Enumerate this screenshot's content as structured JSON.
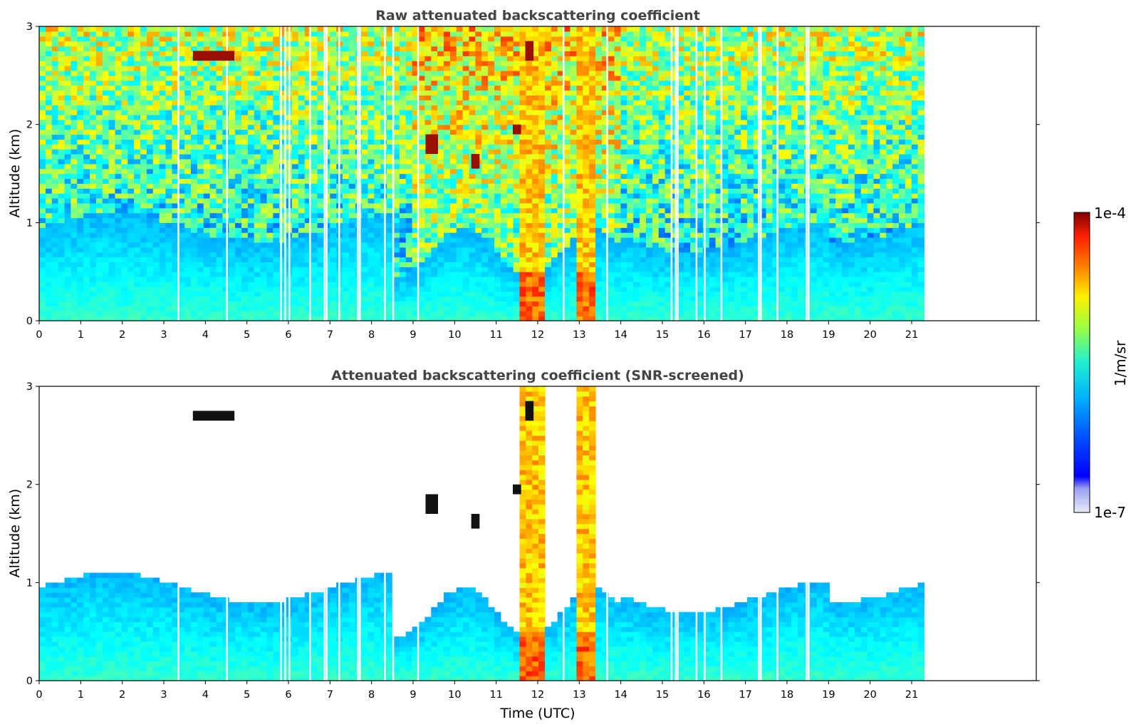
{
  "chart_data": [
    {
      "type": "heatmap",
      "title": "Raw attenuated backscattering coefficient",
      "xlabel": "",
      "ylabel": "Altitude (km)",
      "xlim": [
        0,
        24
      ],
      "ylim": [
        0,
        3
      ],
      "xticks": [
        "0",
        "1",
        "2",
        "3",
        "4",
        "5",
        "6",
        "7",
        "8",
        "9",
        "10",
        "11",
        "12",
        "13",
        "14",
        "15",
        "16",
        "17",
        "18",
        "19",
        "20",
        "21"
      ],
      "yticks": [
        "0",
        "1",
        "2",
        "3"
      ],
      "data_x_range": [
        0,
        21.3
      ],
      "screened": false,
      "features": [
        {
          "name": "boundary layer",
          "x": [
            0,
            21.3
          ],
          "y": [
            0,
            0.8
          ]
        },
        {
          "name": "plume",
          "x": [
            11.6,
            12.1
          ],
          "y": [
            0,
            3
          ]
        },
        {
          "name": "plume",
          "x": [
            13.0,
            13.3
          ],
          "y": [
            0,
            3
          ]
        },
        {
          "name": "cloud",
          "x": [
            3.7,
            4.7
          ],
          "y": [
            2.65,
            2.75
          ]
        },
        {
          "name": "cloud",
          "x": [
            9.3,
            9.6
          ],
          "y": [
            1.7,
            1.9
          ]
        },
        {
          "name": "cloud",
          "x": [
            10.4,
            10.6
          ],
          "y": [
            1.55,
            1.7
          ]
        },
        {
          "name": "cloud",
          "x": [
            11.4,
            11.6
          ],
          "y": [
            1.9,
            2.0
          ]
        },
        {
          "name": "cloud",
          "x": [
            11.7,
            11.9
          ],
          "y": [
            2.65,
            2.85
          ]
        }
      ]
    },
    {
      "type": "heatmap",
      "title": "Attenuated backscattering coefficient (SNR-screened)",
      "xlabel": "Time (UTC)",
      "ylabel": "Altitude (km)",
      "xlim": [
        0,
        24
      ],
      "ylim": [
        0,
        3
      ],
      "xticks": [
        "0",
        "1",
        "2",
        "3",
        "4",
        "5",
        "6",
        "7",
        "8",
        "9",
        "10",
        "11",
        "12",
        "13",
        "14",
        "15",
        "16",
        "17",
        "18",
        "19",
        "20",
        "21"
      ],
      "yticks": [
        "0",
        "1",
        "2",
        "3"
      ],
      "data_x_range": [
        0,
        21.3
      ],
      "screened": true
    }
  ],
  "colorbar": {
    "label": "1/m/sr",
    "min_label": "1e-7",
    "max_label": "1e-4",
    "scale": "log",
    "range": [
      1e-07,
      0.0001
    ]
  },
  "colors": {
    "jet_low": "#00007f",
    "jet_mid": "#7fff7f",
    "jet_high": "#7f0000"
  }
}
